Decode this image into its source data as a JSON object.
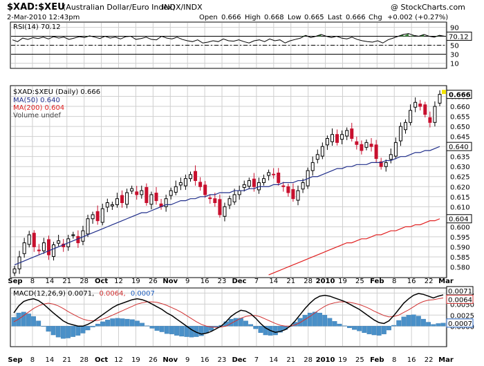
{
  "header": {
    "symbol": "$XAD:$XEU",
    "description": "(Australian Dollar/Euro Index)",
    "exchange": "INDX/INDX",
    "watermark": "@ StockCharts.com",
    "timestamp": "2-Mar-2010 12:43pm",
    "open_label": "Open",
    "open": "0.666",
    "high_label": "High",
    "high": "0.668",
    "low_label": "Low",
    "low": "0.665",
    "last_label": "Last",
    "last": "0.666",
    "chg_label": "Chg",
    "chg": "+0.002 (+0.27%)"
  },
  "colors": {
    "up": "#000000",
    "down": "#c8102e",
    "ma50": "#1f2d8a",
    "ma200": "#e02020",
    "rsi": "#000000",
    "rsi_fill": "#3a8a3a",
    "macd": "#000000",
    "signal": "#d03030",
    "hist": "#4a90c8",
    "badge": "#f5e600"
  },
  "chart_data": [
    {
      "type": "line",
      "title": "RSI(14) 70.12",
      "panel": "rsi",
      "x_labels": [
        "Sep",
        "8",
        "14",
        "21",
        "28",
        "Oct",
        "12",
        "19",
        "26",
        "Nov",
        "9",
        "16",
        "23",
        "Dec",
        "7",
        "14",
        "21",
        "28",
        "2010",
        "19",
        "25",
        "Feb",
        "8",
        "16",
        "22",
        "Mar"
      ],
      "ylim": [
        0,
        100
      ],
      "yticks": [
        10,
        30,
        50,
        70,
        90
      ],
      "reference_lines": [
        70,
        50,
        30
      ],
      "last_value_label": "70.12",
      "series": [
        {
          "name": "RSI(14)",
          "values": [
            62,
            58,
            66,
            63,
            67,
            65,
            68,
            64,
            69,
            66,
            68,
            63,
            66,
            69,
            67,
            71,
            68,
            65,
            70,
            66,
            68,
            64,
            69,
            70,
            63,
            65,
            68,
            63,
            62,
            70,
            66,
            64,
            68,
            63,
            60,
            58,
            62,
            55,
            57,
            60,
            58,
            64,
            60,
            59,
            62,
            58,
            55,
            60,
            62,
            58,
            64,
            60,
            62,
            55,
            60,
            63,
            66,
            72,
            67,
            70,
            74,
            70,
            67,
            70,
            66,
            64,
            68,
            63,
            60,
            58,
            57,
            60,
            55,
            62,
            66,
            70,
            74,
            76,
            72,
            70,
            74,
            70,
            68,
            72,
            70
          ]
        }
      ]
    },
    {
      "type": "candlestick",
      "title": "$XAD:$XEU (Daily) 0.666",
      "panel": "price",
      "legend": [
        {
          "label": "$XAD:$XEU (Daily) 0.666"
        },
        {
          "label": "MA(50) 0.640"
        },
        {
          "label": "MA(200) 0.604"
        },
        {
          "label": "Volume undef"
        }
      ],
      "ylim": [
        0.575,
        0.67
      ],
      "yticks": [
        "0.580",
        "0.585",
        "0.590",
        "0.595",
        "0.600",
        "0.605",
        "0.610",
        "0.615",
        "0.620",
        "0.625",
        "0.630",
        "0.635",
        "0.640",
        "0.645",
        "0.650",
        "0.655",
        "0.660",
        "0.665"
      ],
      "last_value_labels": [
        "0.666",
        "0.640",
        "0.604"
      ],
      "closes": [
        0.579,
        0.585,
        0.592,
        0.596,
        0.59,
        0.588,
        0.592,
        0.586,
        0.591,
        0.593,
        0.59,
        0.594,
        0.596,
        0.592,
        0.598,
        0.604,
        0.606,
        0.603,
        0.609,
        0.612,
        0.611,
        0.614,
        0.612,
        0.617,
        0.619,
        0.616,
        0.618,
        0.612,
        0.616,
        0.613,
        0.61,
        0.614,
        0.618,
        0.62,
        0.622,
        0.624,
        0.626,
        0.623,
        0.62,
        0.616,
        0.614,
        0.612,
        0.606,
        0.61,
        0.614,
        0.616,
        0.618,
        0.621,
        0.623,
        0.62,
        0.622,
        0.624,
        0.627,
        0.626,
        0.622,
        0.62,
        0.617,
        0.614,
        0.618,
        0.622,
        0.628,
        0.632,
        0.636,
        0.64,
        0.644,
        0.646,
        0.642,
        0.646,
        0.648,
        0.644,
        0.641,
        0.638,
        0.642,
        0.64,
        0.634,
        0.63,
        0.632,
        0.636,
        0.642,
        0.65,
        0.652,
        0.658,
        0.662,
        0.66,
        0.656,
        0.652,
        0.66,
        0.666
      ],
      "ma50": [
        0.581,
        0.582,
        0.583,
        0.584,
        0.585,
        0.586,
        0.587,
        0.588,
        0.589,
        0.59,
        0.591,
        0.592,
        0.593,
        0.594,
        0.595,
        0.596,
        0.597,
        0.598,
        0.599,
        0.6,
        0.601,
        0.602,
        0.603,
        0.604,
        0.605,
        0.606,
        0.607,
        0.607,
        0.608,
        0.609,
        0.61,
        0.611,
        0.611,
        0.612,
        0.613,
        0.613,
        0.614,
        0.614,
        0.615,
        0.615,
        0.616,
        0.616,
        0.617,
        0.617,
        0.617,
        0.618,
        0.618,
        0.618,
        0.619,
        0.619,
        0.62,
        0.62,
        0.62,
        0.621,
        0.621,
        0.622,
        0.622,
        0.622,
        0.623,
        0.623,
        0.624,
        0.625,
        0.625,
        0.626,
        0.627,
        0.628,
        0.629,
        0.629,
        0.63,
        0.63,
        0.631,
        0.631,
        0.631,
        0.632,
        0.632,
        0.632,
        0.633,
        0.633,
        0.634,
        0.635,
        0.635,
        0.636,
        0.637,
        0.637,
        0.638,
        0.638,
        0.639,
        0.64
      ],
      "ma200": [
        null,
        null,
        null,
        null,
        null,
        null,
        null,
        null,
        null,
        null,
        null,
        null,
        null,
        null,
        null,
        null,
        null,
        null,
        null,
        null,
        null,
        null,
        null,
        null,
        null,
        null,
        null,
        null,
        null,
        null,
        null,
        null,
        null,
        null,
        null,
        null,
        null,
        null,
        null,
        null,
        null,
        null,
        null,
        null,
        null,
        null,
        null,
        null,
        null,
        null,
        null,
        null,
        0.576,
        0.577,
        0.578,
        0.579,
        0.58,
        0.581,
        0.582,
        0.583,
        0.584,
        0.585,
        0.586,
        0.587,
        0.588,
        0.589,
        0.59,
        0.591,
        0.592,
        0.592,
        0.593,
        0.594,
        0.594,
        0.595,
        0.596,
        0.596,
        0.597,
        0.598,
        0.598,
        0.599,
        0.6,
        0.6,
        0.601,
        0.601,
        0.602,
        0.603,
        0.603,
        0.604
      ]
    },
    {
      "type": "line",
      "title": "MACD(12,26,9) 0.0071, 0.0064, 0.0007",
      "panel": "macd",
      "legend": [
        {
          "label": "MACD(12,26,9) 0.0071,",
          "color": "#000000"
        },
        {
          "label": "0.0064,",
          "color": "#d03030"
        },
        {
          "label": "0.0007",
          "color": "#2060c0"
        }
      ],
      "ylim": [
        -0.0045,
        0.0085
      ],
      "yticks": [
        "0.0000",
        "0.0025",
        "0.0050",
        "0.0075"
      ],
      "last_value_labels": [
        "0.0071",
        "0.0064",
        "0.0007"
      ],
      "series": [
        {
          "name": "MACD",
          "values": [
            0.003,
            0.0046,
            0.0056,
            0.006,
            0.0062,
            0.0058,
            0.005,
            0.004,
            0.003,
            0.0021,
            0.0012,
            0.0006,
            0.0003,
            0.0,
            0.0,
            0.0004,
            0.001,
            0.0018,
            0.0026,
            0.0034,
            0.0042,
            0.0048,
            0.0052,
            0.0056,
            0.006,
            0.0062,
            0.006,
            0.0056,
            0.005,
            0.0044,
            0.0038,
            0.003,
            0.0024,
            0.0016,
            0.0008,
            0.0,
            -0.0008,
            -0.0014,
            -0.0018,
            -0.0016,
            -0.0012,
            -0.0006,
            0.0,
            0.001,
            0.0022,
            0.003,
            0.0036,
            0.0034,
            0.0028,
            0.0018,
            0.0006,
            -0.0004,
            -0.001,
            -0.0014,
            -0.0012,
            -0.0008,
            0.0,
            0.0012,
            0.0026,
            0.004,
            0.0052,
            0.0062,
            0.0068,
            0.007,
            0.0068,
            0.0064,
            0.006,
            0.0056,
            0.005,
            0.0044,
            0.0038,
            0.003,
            0.0022,
            0.0014,
            0.0008,
            0.0006,
            0.0012,
            0.0024,
            0.0038,
            0.0052,
            0.0062,
            0.007,
            0.0074,
            0.0072,
            0.0068,
            0.0064,
            0.0068,
            0.0071
          ]
        },
        {
          "name": "Signal",
          "values": [
            0.001,
            0.0016,
            0.0024,
            0.0032,
            0.004,
            0.0046,
            0.005,
            0.0052,
            0.005,
            0.0046,
            0.004,
            0.0033,
            0.0027,
            0.0021,
            0.0016,
            0.0013,
            0.0012,
            0.0013,
            0.0016,
            0.002,
            0.0025,
            0.003,
            0.0035,
            0.004,
            0.0045,
            0.005,
            0.0053,
            0.0055,
            0.0055,
            0.0054,
            0.0051,
            0.0047,
            0.0042,
            0.0037,
            0.0031,
            0.0024,
            0.0017,
            0.001,
            0.0004,
            0.0,
            -0.0002,
            -0.0003,
            -0.0002,
            0.0,
            0.0006,
            0.0012,
            0.0018,
            0.0022,
            0.0024,
            0.0024,
            0.0021,
            0.0016,
            0.0011,
            0.0006,
            0.0002,
            0.0,
            0.0,
            0.0003,
            0.0008,
            0.0015,
            0.0022,
            0.003,
            0.0038,
            0.0045,
            0.005,
            0.0053,
            0.0055,
            0.0055,
            0.0054,
            0.0052,
            0.0049,
            0.0045,
            0.004,
            0.0034,
            0.0029,
            0.0024,
            0.0021,
            0.0022,
            0.0025,
            0.0031,
            0.0037,
            0.0044,
            0.0051,
            0.0056,
            0.0059,
            0.006,
            0.0062,
            0.0064
          ]
        }
      ],
      "histogram": [
        0.002,
        0.003,
        0.0032,
        0.0028,
        0.0022,
        0.0012,
        0.0,
        -0.0012,
        -0.002,
        -0.0025,
        -0.0028,
        -0.0027,
        -0.0024,
        -0.0021,
        -0.0016,
        -0.0009,
        -0.0002,
        0.0005,
        0.001,
        0.0014,
        0.0017,
        0.0018,
        0.0017,
        0.0016,
        0.0015,
        0.0012,
        0.0007,
        0.0001,
        -0.0005,
        -0.001,
        -0.0013,
        -0.0017,
        -0.0018,
        -0.0021,
        -0.0023,
        -0.0024,
        -0.0025,
        -0.0024,
        -0.0022,
        -0.0016,
        -0.001,
        -0.0003,
        0.0002,
        0.001,
        0.0016,
        0.0018,
        0.0018,
        0.0012,
        0.0004,
        -0.0006,
        -0.0015,
        -0.002,
        -0.0021,
        -0.002,
        -0.0014,
        -0.0008,
        0.0,
        0.0009,
        0.0018,
        0.0025,
        0.003,
        0.0032,
        0.003,
        0.0025,
        0.0018,
        0.0011,
        0.0005,
        0.0001,
        -0.0004,
        -0.0008,
        -0.0011,
        -0.0015,
        -0.0018,
        -0.002,
        -0.0021,
        -0.0018,
        -0.0009,
        0.0002,
        0.0013,
        0.0021,
        0.0025,
        0.0026,
        0.0023,
        0.0016,
        0.0009,
        0.0004,
        0.0006,
        0.0007
      ]
    }
  ]
}
